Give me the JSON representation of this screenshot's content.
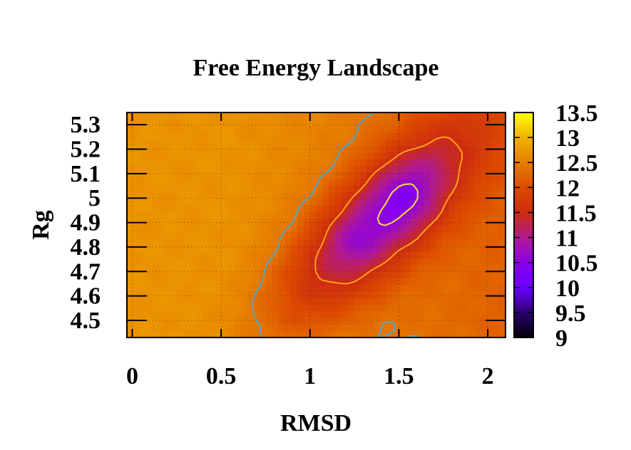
{
  "chart_data": {
    "type": "heatmap",
    "title": "Free Energy Landscape",
    "xlabel": "RMSD",
    "ylabel": "Rg",
    "xlim": [
      -0.03,
      2.1
    ],
    "ylim": [
      4.43,
      5.35
    ],
    "x_ticks": [
      "0",
      "0.5",
      "1",
      "1.5",
      "2"
    ],
    "x_tick_values": [
      0,
      0.5,
      1,
      1.5,
      2
    ],
    "y_ticks": [
      "5.3",
      "5.2",
      "5.1",
      "5",
      "4.9",
      "4.8",
      "4.7",
      "4.6",
      "4.5"
    ],
    "y_tick_values": [
      5.3,
      5.2,
      5.1,
      5.0,
      4.9,
      4.8,
      4.7,
      4.6,
      4.5
    ],
    "colorbar": {
      "range": [
        9,
        13.5
      ],
      "ticks": [
        "13.5",
        "13",
        "12.5",
        "12",
        "11.5",
        "11",
        "10.5",
        "10",
        "9.5",
        "9"
      ],
      "tick_values": [
        13.5,
        13,
        12.5,
        12,
        11.5,
        11,
        10.5,
        10,
        9.5,
        9
      ],
      "colors": [
        "#000000",
        "#2a0070",
        "#6a00ff",
        "#8a00ee",
        "#b11a90",
        "#cc2c10",
        "#dd4a00",
        "#e67e00",
        "#f0b000",
        "#ffff00"
      ]
    },
    "grid": true,
    "grid_style": "dotted",
    "minimum": {
      "x": 1.55,
      "y": 5.0,
      "value": 10.3
    },
    "secondary_minimum": {
      "x": 1.25,
      "y": 4.83,
      "value": 10.4
    },
    "max_value_region": {
      "x": 0.0,
      "y": 4.9,
      "value": 12.7
    },
    "contour_levels": [
      {
        "value": 10.6,
        "color": "#f4e040"
      },
      {
        "value": 11.5,
        "color": "#ffa11a"
      },
      {
        "value": 12.4,
        "color": "#4fa8c8"
      }
    ]
  },
  "colors": {
    "background": "#ffffff",
    "axes": "#000000"
  }
}
